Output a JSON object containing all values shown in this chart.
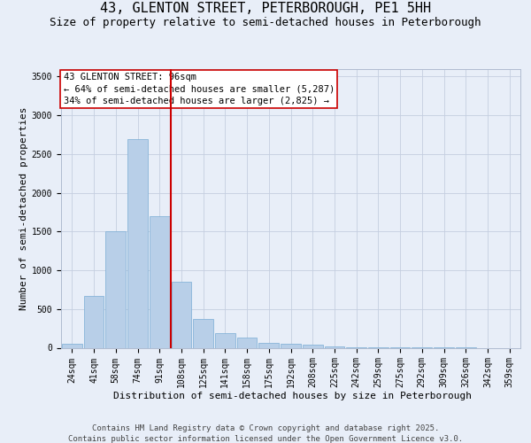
{
  "title": "43, GLENTON STREET, PETERBOROUGH, PE1 5HH",
  "subtitle": "Size of property relative to semi-detached houses in Peterborough",
  "xlabel": "Distribution of semi-detached houses by size in Peterborough",
  "ylabel": "Number of semi-detached properties",
  "categories": [
    "24sqm",
    "41sqm",
    "58sqm",
    "74sqm",
    "91sqm",
    "108sqm",
    "125sqm",
    "141sqm",
    "158sqm",
    "175sqm",
    "192sqm",
    "208sqm",
    "225sqm",
    "242sqm",
    "259sqm",
    "275sqm",
    "292sqm",
    "309sqm",
    "326sqm",
    "342sqm",
    "359sqm"
  ],
  "values": [
    55,
    665,
    1500,
    2690,
    1700,
    850,
    370,
    185,
    130,
    65,
    55,
    35,
    20,
    10,
    5,
    3,
    2,
    1,
    1,
    0,
    0
  ],
  "bar_color": "#b8cfe8",
  "bar_edge_color": "#7aadd4",
  "vline_x_index": 4,
  "vline_color": "#cc0000",
  "annotation_title": "43 GLENTON STREET: 96sqm",
  "annotation_line1": "← 64% of semi-detached houses are smaller (5,287)",
  "annotation_line2": "34% of semi-detached houses are larger (2,825) →",
  "annotation_box_color": "#ffffff",
  "annotation_box_edge": "#cc0000",
  "ylim": [
    0,
    3600
  ],
  "yticks": [
    0,
    500,
    1000,
    1500,
    2000,
    2500,
    3000,
    3500
  ],
  "background_color": "#e8eef8",
  "footer_line1": "Contains HM Land Registry data © Crown copyright and database right 2025.",
  "footer_line2": "Contains public sector information licensed under the Open Government Licence v3.0.",
  "title_fontsize": 11,
  "subtitle_fontsize": 9,
  "axis_label_fontsize": 8,
  "tick_fontsize": 7,
  "annotation_fontsize": 7.5,
  "footer_fontsize": 6.5
}
